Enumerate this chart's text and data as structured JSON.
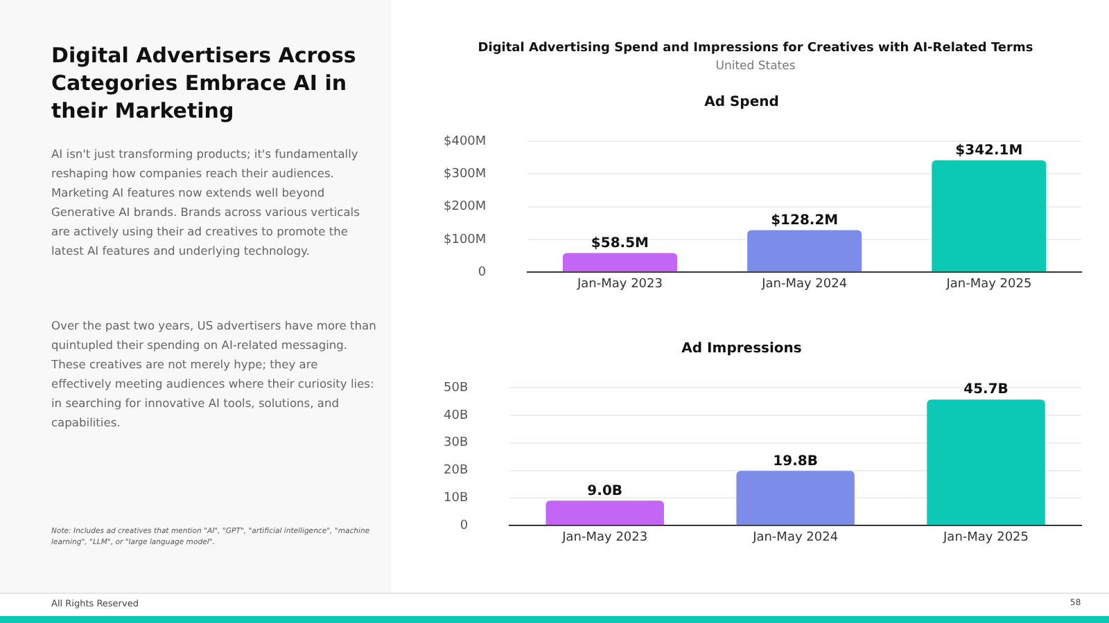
{
  "chart_data": [
    {
      "type": "other",
      "title": "Digital Advertisers Across Categories Embrace AI in their Marketing",
      "annotations": [
        "AI isn't just transforming products; it's fundamentally reshaping how companies reach their audiences. Marketing AI features now extends well beyond Generative AI brands. Brands across various verticals are actively using their ad creatives to promote the latest AI features and underlying technology.",
        "Over the past two years, US advertisers have more than quintupled their spending on AI-related messaging. These creatives are not merely hype; they are effectively meeting audiences where their curiosity lies: in searching for innovative AI tools, solutions, and capabilities.",
        "Note: Includes ad creatives that mention \"AI\", \"GPT\", \"artificial intelligence\", \"machine learning\", \"LLM\", or \"large language model\".",
        "All Rights Reserved",
        "58"
      ]
    },
    {
      "type": "bar",
      "title": "Ad Spend",
      "annotations": [
        "Digital Advertising Spend and Impressions for Creatives with AI-Related Terms",
        "United States"
      ],
      "categories": [
        "Jan-May 2023",
        "Jan-May 2024",
        "Jan-May 2025"
      ],
      "values": [
        58.5,
        128.2,
        342.1
      ],
      "value_labels": [
        "$58.5M",
        "$128.2M",
        "$342.1M"
      ],
      "colors": [
        "#c466f5",
        "#7b8de8",
        "#0bc9b5"
      ],
      "ylim": [
        0,
        400
      ],
      "yticks": [
        0,
        {
          "value": 100,
          "label": "$100M"
        },
        {
          "value": 200,
          "label": "$200M"
        },
        {
          "value": 300,
          "label": "$300M"
        },
        {
          "value": 400,
          "label": "$400M"
        }
      ],
      "grid": "y"
    },
    {
      "type": "bar",
      "title": "Ad Impressions",
      "categories": [
        "Jan-May 2023",
        "Jan-May 2024",
        "Jan-May 2025"
      ],
      "values": [
        9.0,
        19.8,
        45.7
      ],
      "value_labels": [
        "9.0B",
        "19.8B",
        "45.7B"
      ],
      "colors": [
        "#c466f5",
        "#7b8de8",
        "#0bc9b5"
      ],
      "ylim": [
        0,
        50
      ],
      "yticks": [
        0,
        {
          "value": 10,
          "label": "10B"
        },
        {
          "value": 20,
          "label": "20B"
        },
        {
          "value": 30,
          "label": "30B"
        },
        {
          "value": 40,
          "label": "40B"
        },
        {
          "value": 50,
          "label": "50B"
        }
      ],
      "grid": "y"
    }
  ]
}
